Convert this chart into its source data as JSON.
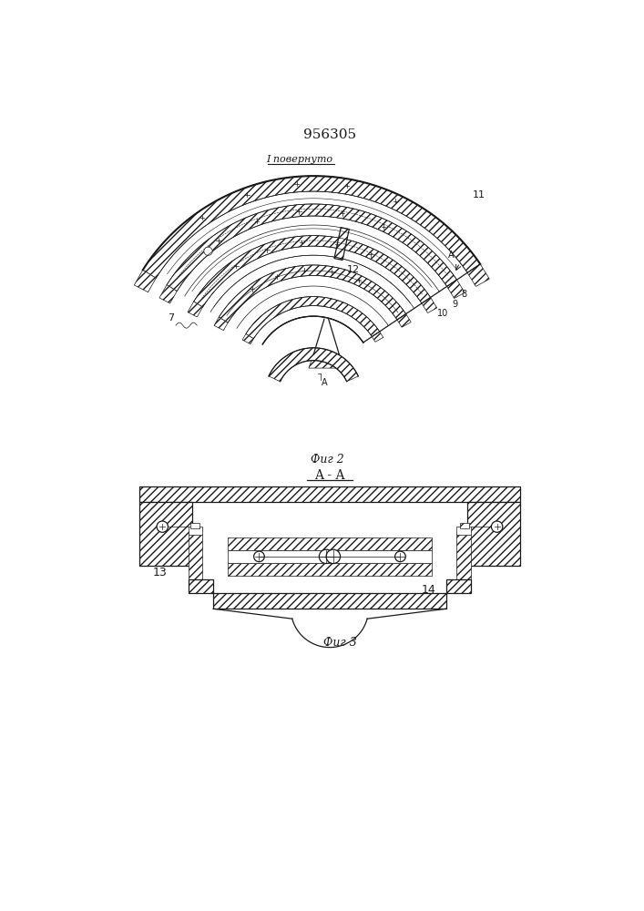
{
  "title": "956305",
  "fig2_label": "Фиг 2",
  "fig3_label": "Фиг 3",
  "section_label": "A - A",
  "rotate_label": "I повернуто",
  "bg_color": "#ffffff",
  "line_color": "#1a1a1a",
  "lw_thin": 0.5,
  "lw_med": 0.9,
  "lw_thick": 1.5
}
